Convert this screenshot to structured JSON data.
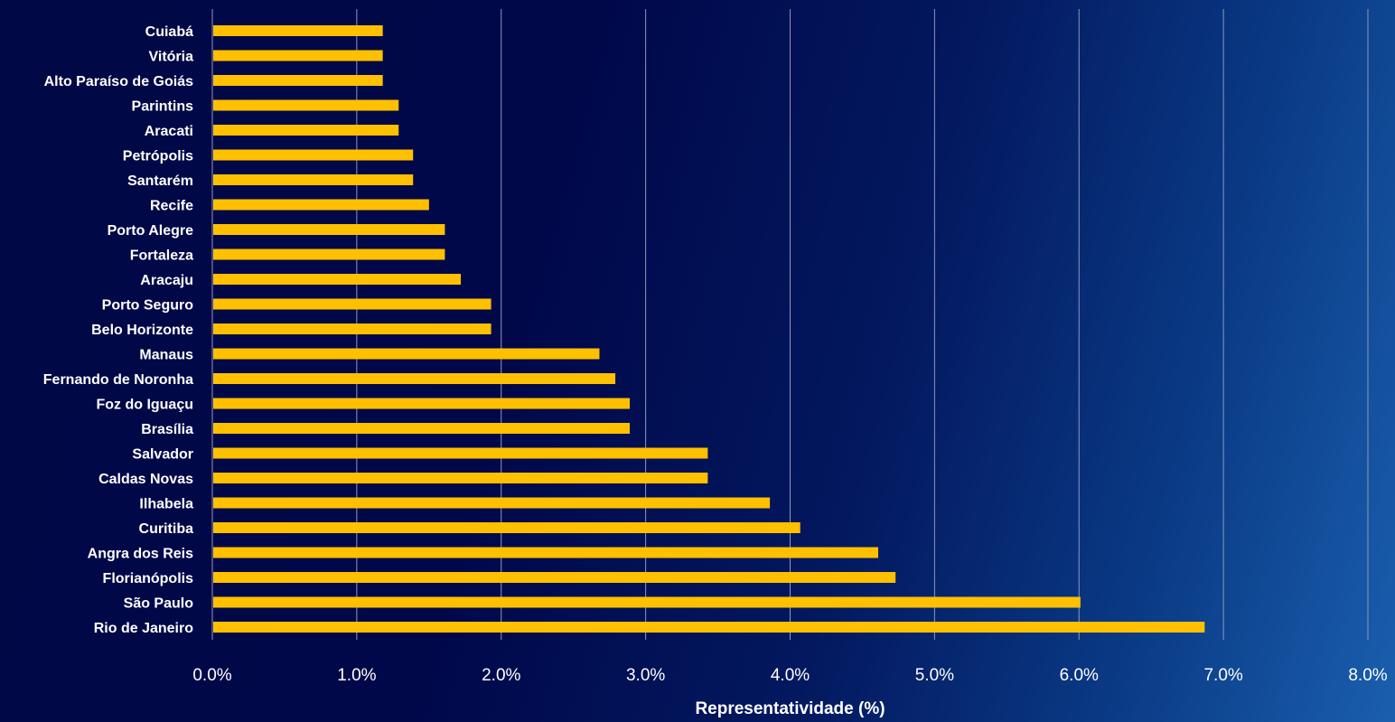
{
  "chart_data": {
    "type": "bar",
    "orientation": "horizontal",
    "categories": [
      "Rio de Janeiro",
      "São Paulo",
      "Florianópolis",
      "Angra dos Reis",
      "Curitiba",
      "Ilhabela",
      "Caldas Novas",
      "Salvador",
      "Brasília",
      "Foz do Iguaçu",
      "Fernando de Noronha",
      "Manaus",
      "Belo Horizonte",
      "Porto Seguro",
      "Aracaju",
      "Fortaleza",
      "Porto Alegre",
      "Recife",
      "Santarém",
      "Petrópolis",
      "Aracati",
      "Parintins",
      "Alto Paraíso de Goiás",
      "Vitória",
      "Cuiabá"
    ],
    "values": [
      6.87,
      6.01,
      4.73,
      4.61,
      4.07,
      3.86,
      3.43,
      3.43,
      2.89,
      2.89,
      2.79,
      2.68,
      1.93,
      1.93,
      1.72,
      1.61,
      1.61,
      1.5,
      1.39,
      1.39,
      1.29,
      1.29,
      1.18,
      1.18,
      1.18
    ],
    "xlim": [
      0,
      8
    ],
    "xticks": [
      0,
      1,
      2,
      3,
      4,
      5,
      6,
      7,
      8
    ],
    "xtick_labels": [
      "0.0%",
      "1.0%",
      "2.0%",
      "3.0%",
      "4.0%",
      "5.0%",
      "6.0%",
      "7.0%",
      "8.0%"
    ],
    "xlabel": "Representatividade (%)",
    "ylabel": "",
    "title": "",
    "grid": "vertical",
    "legend": "none",
    "bar_color": "#ffc000",
    "grid_color": "#8f97b8",
    "text_color": "#ffffff"
  }
}
